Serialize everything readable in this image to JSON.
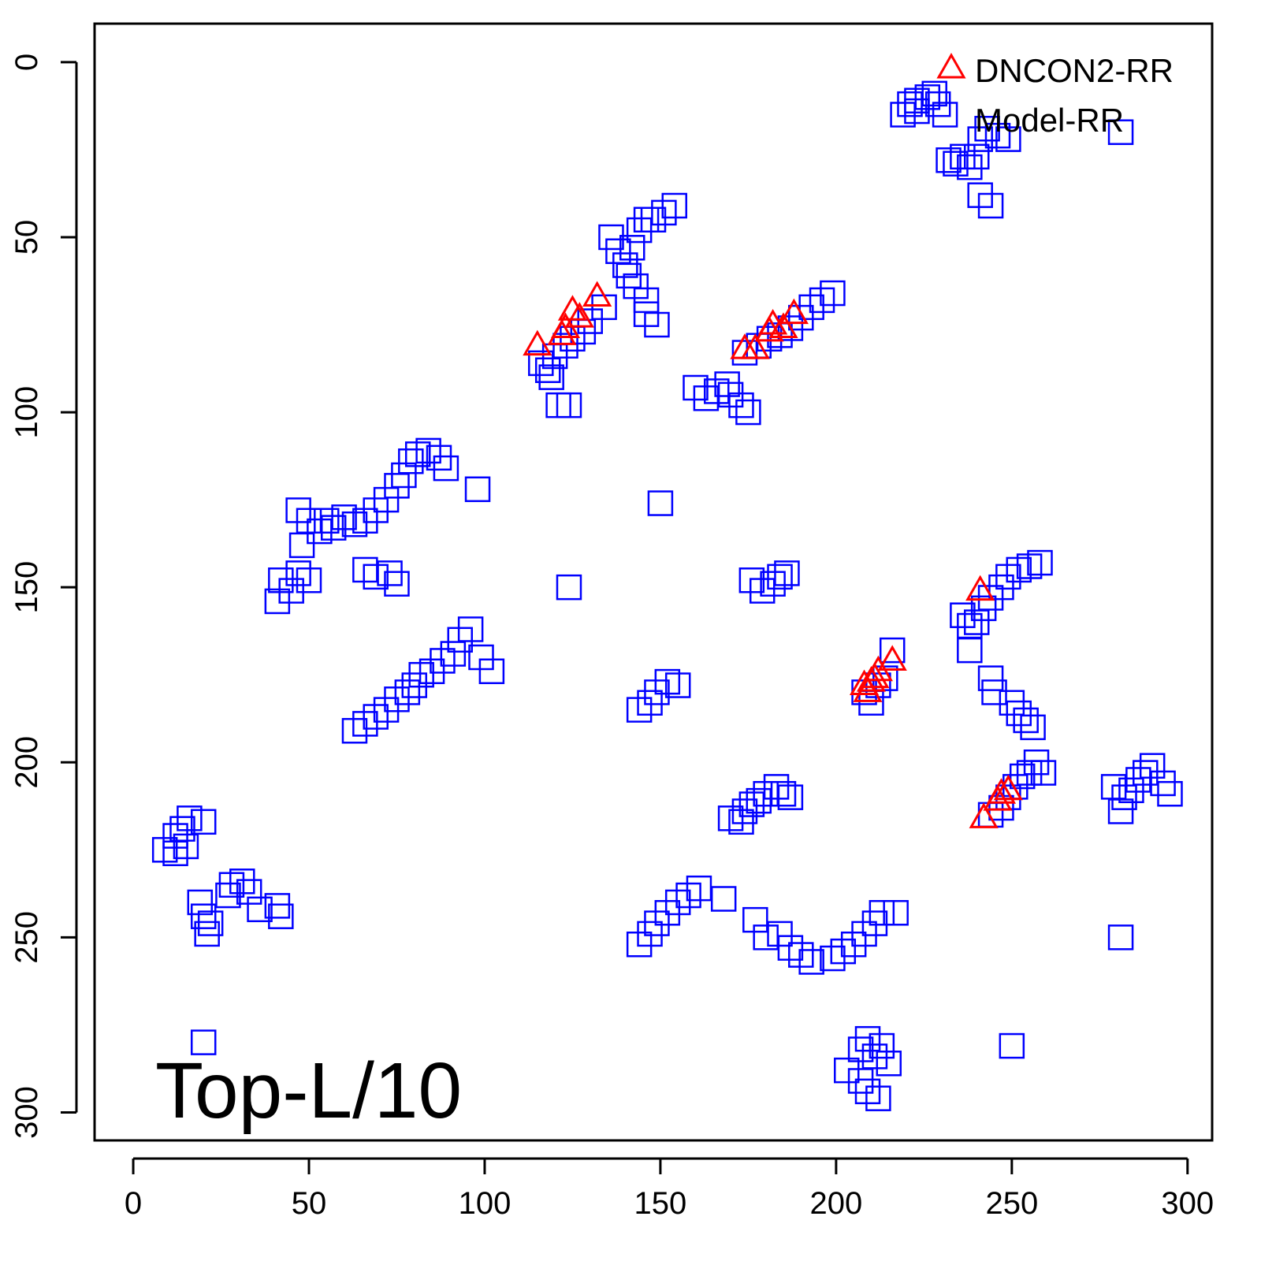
{
  "chart_data": {
    "type": "scatter",
    "title": "",
    "xlabel": "",
    "ylabel": "",
    "xlim": [
      -11,
      307
    ],
    "ylim": [
      308,
      -11
    ],
    "y_axis_reversed": true,
    "x_ticks": [
      0,
      50,
      100,
      150,
      200,
      250,
      300
    ],
    "y_ticks": [
      0,
      50,
      100,
      150,
      200,
      250,
      300
    ],
    "x_tick_labels": [
      "0",
      "50",
      "100",
      "150",
      "200",
      "250",
      "300"
    ],
    "y_tick_labels": [
      "0",
      "50",
      "100",
      "150",
      "200",
      "250",
      "300"
    ],
    "grid": false,
    "legend_position": "top-right",
    "annotation": "Top-L/10",
    "series": [
      {
        "name": "DNCON2-RR",
        "marker": "open-triangle",
        "color": "#ff0000",
        "points": [
          [
            115,
            81
          ],
          [
            122,
            78
          ],
          [
            123,
            76
          ],
          [
            125,
            71
          ],
          [
            127,
            73
          ],
          [
            132,
            67
          ],
          [
            174,
            82
          ],
          [
            177,
            82
          ],
          [
            181,
            77
          ],
          [
            182,
            75
          ],
          [
            185,
            76
          ],
          [
            188,
            72
          ],
          [
            208,
            178
          ],
          [
            209,
            180
          ],
          [
            210,
            177
          ],
          [
            211,
            176
          ],
          [
            212,
            174
          ],
          [
            216,
            171
          ],
          [
            241,
            151
          ],
          [
            242,
            216
          ],
          [
            246,
            211
          ],
          [
            247,
            209
          ],
          [
            249,
            208
          ]
        ]
      },
      {
        "name": "Model-RR",
        "marker": "open-square",
        "color": "#0000ff",
        "points": [
          [
            219,
            15
          ],
          [
            221,
            12
          ],
          [
            223,
            11
          ],
          [
            226,
            10
          ],
          [
            228,
            9
          ],
          [
            229,
            12
          ],
          [
            231,
            15
          ],
          [
            223,
            14
          ],
          [
            232,
            28
          ],
          [
            234,
            29
          ],
          [
            236,
            27
          ],
          [
            238,
            30
          ],
          [
            240,
            27
          ],
          [
            241,
            22
          ],
          [
            243,
            19
          ],
          [
            246,
            21
          ],
          [
            249,
            22
          ],
          [
            241,
            38
          ],
          [
            244,
            41
          ],
          [
            281,
            20
          ],
          [
            148,
            45
          ],
          [
            151,
            43
          ],
          [
            154,
            41
          ],
          [
            136,
            50
          ],
          [
            138,
            54
          ],
          [
            140,
            58
          ],
          [
            142,
            53
          ],
          [
            144,
            48
          ],
          [
            146,
            45
          ],
          [
            141,
            61
          ],
          [
            143,
            64
          ],
          [
            134,
            70
          ],
          [
            116,
            86
          ],
          [
            118,
            88
          ],
          [
            120,
            84
          ],
          [
            123,
            81
          ],
          [
            125,
            79
          ],
          [
            128,
            77
          ],
          [
            130,
            74
          ],
          [
            119,
            90
          ],
          [
            121,
            98
          ],
          [
            124,
            98
          ],
          [
            146,
            68
          ],
          [
            146,
            72
          ],
          [
            149,
            75
          ],
          [
            174,
            83
          ],
          [
            178,
            81
          ],
          [
            181,
            79
          ],
          [
            184,
            78
          ],
          [
            187,
            76
          ],
          [
            190,
            73
          ],
          [
            193,
            70
          ],
          [
            196,
            68
          ],
          [
            199,
            66
          ],
          [
            160,
            93
          ],
          [
            163,
            96
          ],
          [
            166,
            94
          ],
          [
            169,
            92
          ],
          [
            170,
            95
          ],
          [
            173,
            98
          ],
          [
            175,
            100
          ],
          [
            77,
            118
          ],
          [
            79,
            114
          ],
          [
            81,
            112
          ],
          [
            84,
            111
          ],
          [
            87,
            113
          ],
          [
            89,
            116
          ],
          [
            75,
            121
          ],
          [
            72,
            125
          ],
          [
            69,
            128
          ],
          [
            66,
            131
          ],
          [
            63,
            132
          ],
          [
            60,
            130
          ],
          [
            57,
            133
          ],
          [
            47,
            128
          ],
          [
            50,
            131
          ],
          [
            53,
            134
          ],
          [
            55,
            131
          ],
          [
            48,
            138
          ],
          [
            98,
            122
          ],
          [
            150,
            126
          ],
          [
            42,
            148
          ],
          [
            45,
            151
          ],
          [
            47,
            146
          ],
          [
            50,
            148
          ],
          [
            41,
            154
          ],
          [
            66,
            145
          ],
          [
            69,
            147
          ],
          [
            73,
            146
          ],
          [
            75,
            149
          ],
          [
            124,
            150
          ],
          [
            63,
            191
          ],
          [
            66,
            189
          ],
          [
            69,
            187
          ],
          [
            72,
            185
          ],
          [
            75,
            182
          ],
          [
            78,
            180
          ],
          [
            80,
            178
          ],
          [
            82,
            175
          ],
          [
            85,
            174
          ],
          [
            88,
            171
          ],
          [
            91,
            169
          ],
          [
            93,
            165
          ],
          [
            96,
            162
          ],
          [
            99,
            170
          ],
          [
            102,
            174
          ],
          [
            144,
            185
          ],
          [
            147,
            183
          ],
          [
            149,
            180
          ],
          [
            152,
            177
          ],
          [
            155,
            178
          ],
          [
            176,
            148
          ],
          [
            179,
            151
          ],
          [
            182,
            149
          ],
          [
            184,
            147
          ],
          [
            186,
            146
          ],
          [
            208,
            180
          ],
          [
            210,
            183
          ],
          [
            212,
            178
          ],
          [
            214,
            176
          ],
          [
            216,
            168
          ],
          [
            236,
            158
          ],
          [
            238,
            161
          ],
          [
            240,
            160
          ],
          [
            242,
            156
          ],
          [
            244,
            153
          ],
          [
            247,
            150
          ],
          [
            249,
            147
          ],
          [
            252,
            145
          ],
          [
            255,
            144
          ],
          [
            258,
            143
          ],
          [
            238,
            168
          ],
          [
            244,
            176
          ],
          [
            245,
            180
          ],
          [
            250,
            183
          ],
          [
            252,
            186
          ],
          [
            254,
            188
          ],
          [
            256,
            190
          ],
          [
            174,
            214
          ],
          [
            176,
            212
          ],
          [
            178,
            211
          ],
          [
            180,
            209
          ],
          [
            183,
            207
          ],
          [
            185,
            209
          ],
          [
            187,
            210
          ],
          [
            170,
            216
          ],
          [
            173,
            217
          ],
          [
            244,
            215
          ],
          [
            247,
            213
          ],
          [
            249,
            210
          ],
          [
            251,
            207
          ],
          [
            253,
            204
          ],
          [
            255,
            203
          ],
          [
            257,
            200
          ],
          [
            259,
            203
          ],
          [
            279,
            207
          ],
          [
            282,
            210
          ],
          [
            284,
            208
          ],
          [
            286,
            205
          ],
          [
            288,
            203
          ],
          [
            290,
            201
          ],
          [
            293,
            206
          ],
          [
            295,
            209
          ],
          [
            281,
            214
          ],
          [
            9,
            225
          ],
          [
            12,
            221
          ],
          [
            14,
            219
          ],
          [
            16,
            216
          ],
          [
            20,
            217
          ],
          [
            12,
            226
          ],
          [
            15,
            224
          ],
          [
            19,
            240
          ],
          [
            20,
            244
          ],
          [
            21,
            249
          ],
          [
            22,
            246
          ],
          [
            27,
            238
          ],
          [
            28,
            235
          ],
          [
            31,
            234
          ],
          [
            33,
            237
          ],
          [
            36,
            242
          ],
          [
            41,
            241
          ],
          [
            42,
            244
          ],
          [
            20,
            280
          ],
          [
            144,
            252
          ],
          [
            147,
            249
          ],
          [
            149,
            246
          ],
          [
            152,
            243
          ],
          [
            155,
            240
          ],
          [
            158,
            238
          ],
          [
            161,
            236
          ],
          [
            168,
            239
          ],
          [
            177,
            245
          ],
          [
            180,
            250
          ],
          [
            184,
            249
          ],
          [
            187,
            253
          ],
          [
            190,
            255
          ],
          [
            193,
            257
          ],
          [
            199,
            256
          ],
          [
            202,
            254
          ],
          [
            205,
            252
          ],
          [
            208,
            249
          ],
          [
            211,
            246
          ],
          [
            213,
            243
          ],
          [
            217,
            243
          ],
          [
            281,
            250
          ],
          [
            207,
            282
          ],
          [
            209,
            279
          ],
          [
            211,
            284
          ],
          [
            213,
            281
          ],
          [
            215,
            286
          ],
          [
            203,
            288
          ],
          [
            207,
            291
          ],
          [
            209,
            294
          ],
          [
            212,
            296
          ],
          [
            250,
            281
          ]
        ]
      }
    ]
  }
}
